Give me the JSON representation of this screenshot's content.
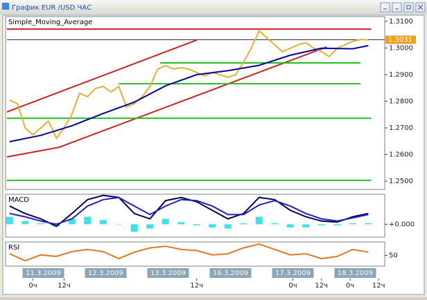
{
  "window": {
    "title": "График EUR /USD  ЧАС"
  },
  "time_axis": {
    "xlim": [
      -10,
      130
    ],
    "date_ticks": [
      {
        "value": 0,
        "label": "11.3.2009"
      },
      {
        "value": 24,
        "label": "12.3.2009"
      },
      {
        "value": 48,
        "label": "13.3.2009"
      },
      {
        "value": 72,
        "label": "16.3.2009"
      },
      {
        "value": 96,
        "label": "17.3.2009"
      },
      {
        "value": 120,
        "label": "18.3.2009"
      }
    ],
    "hour_ticks": [
      {
        "value": 0,
        "label": "0ч"
      },
      {
        "value": 12,
        "label": "12ч"
      },
      {
        "value": 63,
        "label": "12ч"
      },
      {
        "value": 100,
        "label": "0ч"
      },
      {
        "value": 111,
        "label": "12ч"
      },
      {
        "value": 122,
        "label": "0ч"
      },
      {
        "value": 133,
        "label": "12ч"
      }
    ]
  },
  "chart_data": [
    {
      "type": "line",
      "annotation": "Simple_Moving_Average",
      "ylim": [
        1.2469,
        1.3118
      ],
      "yticks": [
        {
          "value": 1.31,
          "label": "1.3100"
        },
        {
          "value": 1.3,
          "label": "1.3000"
        },
        {
          "value": 1.29,
          "label": "1.2900"
        },
        {
          "value": 1.28,
          "label": "1.2800"
        },
        {
          "value": 1.27,
          "label": "1.2700"
        },
        {
          "value": 1.26,
          "label": "1.2600"
        },
        {
          "value": 1.25,
          "label": "1.2500"
        }
      ],
      "last_price": 1.3031,
      "last_price_color": "#f0a020",
      "series": [
        {
          "color": "#e8b030",
          "x": [
            -9,
            -6,
            -3,
            0,
            3,
            6,
            9,
            12,
            15,
            18,
            21,
            24,
            27,
            30,
            33,
            36,
            39,
            42,
            45,
            48,
            51,
            54,
            57,
            60,
            63,
            66,
            69,
            72,
            75,
            78,
            81,
            84,
            87,
            90,
            93,
            96,
            99,
            102,
            105,
            108,
            111,
            114,
            117,
            120,
            123,
            126,
            129
          ],
          "values": [
            1.2804,
            1.2791,
            1.27,
            1.2674,
            1.27,
            1.2726,
            1.2661,
            1.27,
            1.2752,
            1.283,
            1.2817,
            1.2848,
            1.2856,
            1.2835,
            1.2856,
            1.2778,
            1.2791,
            1.2817,
            1.2856,
            1.2921,
            1.2934,
            1.2921,
            1.2926,
            1.2921,
            1.2908,
            1.2895,
            1.2908,
            1.29,
            1.289,
            1.29,
            1.2947,
            1.2999,
            1.3064,
            1.3038,
            1.3012,
            1.2986,
            1.2999,
            1.3012,
            1.302,
            1.2999,
            1.2986,
            1.2968,
            1.2999,
            1.3012,
            1.3025,
            1.3032,
            1.3031
          ]
        },
        {
          "color": "#0000a0",
          "x": [
            -9,
            3,
            15,
            27,
            39,
            51,
            63,
            75,
            87,
            99,
            111,
            123,
            129
          ],
          "values": [
            1.2648,
            1.2672,
            1.2708,
            1.2754,
            1.2797,
            1.2858,
            1.29,
            1.2915,
            1.2935,
            1.2973,
            1.2999,
            1.2997,
            1.3009
          ]
        }
      ],
      "lines": [
        {
          "color": "#d02020",
          "x": [
            -10,
            63
          ],
          "values": [
            1.276,
            1.303
          ]
        },
        {
          "color": "#d02020",
          "x": [
            -10,
            10
          ],
          "values": [
            1.2591,
            1.2627
          ]
        },
        {
          "color": "#d02020",
          "x": [
            10,
            113
          ],
          "values": [
            1.2627,
            1.3004
          ]
        },
        {
          "color": "#d02020",
          "x": [
            -10,
            130
          ],
          "values": [
            1.3071,
            1.3071
          ]
        },
        {
          "color": "#20c020",
          "x": [
            49,
            126
          ],
          "values": [
            1.2944,
            1.2944
          ]
        },
        {
          "color": "#20c020",
          "x": [
            33,
            126
          ],
          "values": [
            1.2866,
            1.2866
          ]
        },
        {
          "color": "#20c020",
          "x": [
            -10,
            130
          ],
          "values": [
            1.2736,
            1.2736
          ]
        },
        {
          "color": "#20c020",
          "x": [
            -10,
            130
          ],
          "values": [
            1.2503,
            1.2503
          ]
        }
      ]
    },
    {
      "type": "line",
      "annotation": "MACD",
      "ylim": [
        -0.0012,
        0.0028
      ],
      "yticks": [
        {
          "value": 0,
          "label": "+0.000"
        }
      ],
      "series": [
        {
          "kind": "bar",
          "color": "#40e0e8",
          "x": [
            -9,
            -3,
            3,
            9,
            15,
            21,
            27,
            33,
            39,
            45,
            51,
            57,
            63,
            69,
            75,
            81,
            87,
            93,
            99,
            105,
            111,
            117,
            123,
            129
          ],
          "values": [
            0.0007,
            0.0003,
            0.0001,
            -0.0002,
            0.0005,
            0.0007,
            0.0004,
            0,
            -0.0007,
            -0.0004,
            0.0005,
            0.0002,
            -0.0001,
            -0.0003,
            -0.0004,
            0.0001,
            0.0007,
            0.0001,
            -0.0003,
            -0.0003,
            -0.0001,
            -0.0001,
            0.0001,
            0.0001
          ]
        },
        {
          "color": "#000050",
          "x": [
            -9,
            -3,
            3,
            9,
            15,
            21,
            27,
            33,
            39,
            45,
            51,
            57,
            63,
            69,
            75,
            81,
            87,
            93,
            99,
            105,
            111,
            117,
            123,
            129
          ],
          "values": [
            0.0017,
            0.001,
            0.0005,
            -0.0002,
            0.001,
            0.0023,
            0.0027,
            0.0025,
            0.001,
            0.0005,
            0.0022,
            0.0025,
            0.0021,
            0.0013,
            0.0005,
            0.001,
            0.0025,
            0.0023,
            0.0013,
            0.0007,
            0.0003,
            0.0002,
            0.0007,
            0.001
          ]
        },
        {
          "color": "#2020c0",
          "x": [
            -9,
            -3,
            3,
            9,
            15,
            21,
            27,
            33,
            39,
            45,
            51,
            57,
            63,
            69,
            75,
            81,
            87,
            93,
            99,
            105,
            111,
            117,
            123,
            129
          ],
          "values": [
            0.001,
            0.0007,
            0.0003,
            0,
            0.0005,
            0.0017,
            0.0023,
            0.0025,
            0.0017,
            0.0009,
            0.0017,
            0.0023,
            0.0022,
            0.0017,
            0.0009,
            0.0009,
            0.0018,
            0.0022,
            0.0017,
            0.001,
            0.0005,
            0.0003,
            0.0006,
            0.0009
          ]
        }
      ]
    },
    {
      "type": "line",
      "annotation": "RSI",
      "ylim": [
        30,
        75
      ],
      "yticks": [
        50
      ],
      "series": [
        {
          "color": "#e07820",
          "x": [
            -9,
            -3,
            3,
            9,
            15,
            21,
            27,
            33,
            39,
            45,
            51,
            57,
            63,
            69,
            75,
            81,
            87,
            93,
            99,
            105,
            111,
            117,
            123,
            129
          ],
          "values": [
            53,
            40,
            51,
            48,
            57,
            61,
            57,
            44,
            56,
            64,
            67,
            61,
            59,
            51,
            53,
            64,
            71,
            61,
            51,
            53,
            44,
            48,
            61,
            56
          ]
        }
      ]
    }
  ]
}
